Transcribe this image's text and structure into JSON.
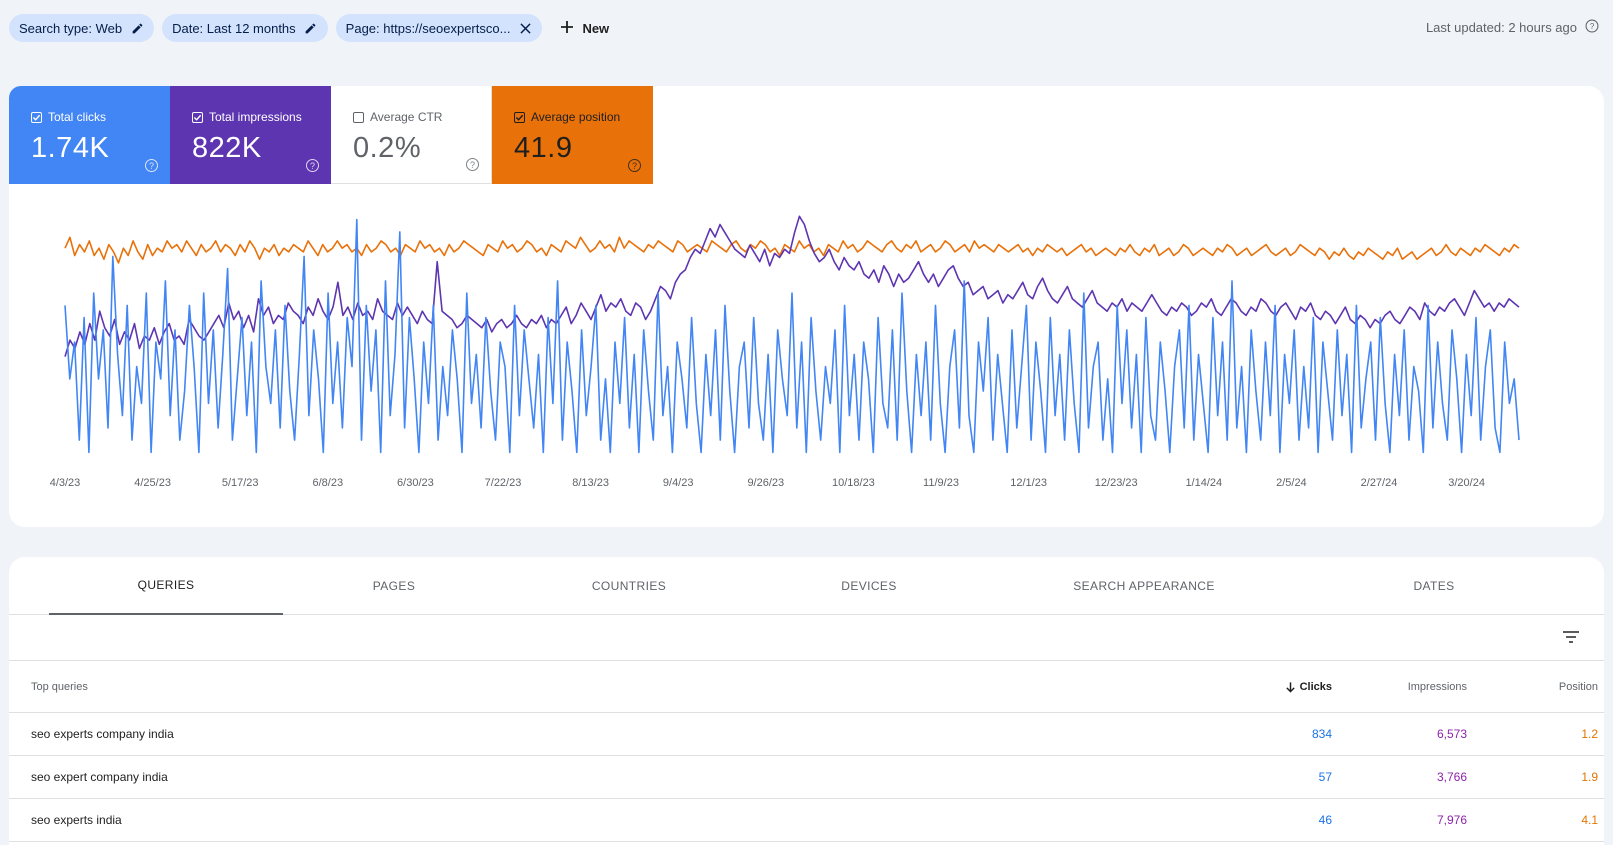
{
  "filters": {
    "search_type": "Search type: Web",
    "date": "Date: Last 12 months",
    "page": "Page: https://seoexpertsco...",
    "new_label": "New"
  },
  "last_updated": "Last updated: 2 hours ago",
  "metrics": {
    "clicks": {
      "label": "Total clicks",
      "value": "1.74K",
      "checked": true,
      "color": "#4285f4"
    },
    "impressions": {
      "label": "Total impressions",
      "value": "822K",
      "checked": true,
      "color": "#5e35b1"
    },
    "ctr": {
      "label": "Average CTR",
      "value": "0.2%",
      "checked": false
    },
    "position": {
      "label": "Average position",
      "value": "41.9",
      "checked": true,
      "color": "#e8710a"
    }
  },
  "chart_data": {
    "type": "line",
    "x_tick_labels": [
      "4/3/23",
      "4/25/23",
      "5/17/23",
      "6/8/23",
      "6/30/23",
      "7/22/23",
      "8/13/23",
      "9/4/23",
      "9/26/23",
      "10/18/23",
      "11/9/23",
      "12/1/23",
      "12/23/23",
      "1/14/24",
      "2/5/24",
      "2/27/24",
      "3/20/24"
    ],
    "grid": false,
    "series": [
      {
        "name": "Total clicks",
        "color": "#4285f4",
        "values": [
          14,
          8,
          11,
          3,
          13,
          2,
          15,
          8,
          12,
          4,
          18,
          10,
          5,
          14,
          3,
          9,
          6,
          15,
          2,
          11,
          8,
          16,
          5,
          12,
          3,
          7,
          14,
          9,
          2,
          15,
          6,
          12,
          4,
          10,
          17,
          3,
          8,
          13,
          5,
          11,
          2,
          16,
          9,
          6,
          12,
          4,
          14,
          7,
          3,
          10,
          18,
          5,
          12,
          8,
          2,
          15,
          6,
          11,
          4,
          13,
          9,
          21,
          3,
          14,
          7,
          12,
          2,
          16,
          5,
          10,
          20,
          4,
          13,
          8,
          2,
          11,
          6,
          14,
          3,
          9,
          5,
          12,
          8,
          2,
          15,
          6,
          10,
          4,
          13,
          7,
          3,
          11,
          9,
          2,
          14,
          5,
          12,
          8,
          4,
          10,
          2,
          13,
          6,
          16,
          3,
          11,
          7,
          2,
          12,
          5,
          9,
          14,
          3,
          8,
          2,
          11,
          6,
          13,
          4,
          10,
          2,
          12,
          7,
          3,
          15,
          5,
          9,
          2,
          11,
          8,
          4,
          13,
          6,
          2,
          10,
          5,
          12,
          3,
          14,
          7,
          2,
          9,
          11,
          4,
          13,
          6,
          3,
          10,
          2,
          12,
          8,
          5,
          15,
          4,
          11,
          2,
          13,
          7,
          3,
          9,
          6,
          12,
          2,
          14,
          5,
          10,
          3,
          11,
          8,
          2,
          13,
          6,
          4,
          12,
          3,
          15,
          7,
          2,
          10,
          5,
          11,
          3,
          14,
          6,
          2,
          9,
          12,
          4,
          16,
          5,
          2,
          11,
          7,
          13,
          3,
          10,
          6,
          2,
          12,
          4,
          9,
          14,
          3,
          11,
          7,
          2,
          13,
          5,
          10,
          3,
          12,
          6,
          2,
          15,
          4,
          9,
          11,
          3,
          8,
          2,
          14,
          6,
          12,
          4,
          10,
          2,
          13,
          5,
          3,
          11,
          7,
          2,
          9,
          12,
          4,
          14,
          3,
          10,
          6,
          2,
          13,
          5,
          11,
          3,
          16,
          4,
          9,
          2,
          12,
          7,
          3,
          11,
          5,
          14,
          2,
          10,
          6,
          12,
          3,
          9,
          4,
          13,
          2,
          11,
          7,
          3,
          12,
          5,
          10,
          2,
          14,
          4,
          8,
          11,
          3,
          13,
          6,
          2,
          10,
          5,
          12,
          3,
          9,
          7,
          2,
          14,
          4,
          11,
          6,
          3,
          12,
          8,
          2,
          10,
          5,
          13,
          3,
          9,
          12,
          4,
          2,
          11,
          6,
          8,
          3
        ]
      },
      {
        "name": "Total impressions",
        "color": "#5e35b1",
        "values": [
          2500,
          2900,
          2700,
          3100,
          2800,
          3300,
          2900,
          3600,
          3200,
          3000,
          3400,
          2800,
          3100,
          2900,
          3300,
          2700,
          3000,
          2900,
          3200,
          2800,
          3100,
          3300,
          2900,
          3000,
          2800,
          3400,
          3200,
          3000,
          2900,
          3100,
          3300,
          3500,
          3200,
          3800,
          3400,
          3600,
          3200,
          3500,
          3100,
          3900,
          3500,
          3700,
          3300,
          3500,
          3400,
          3800,
          3600,
          3500,
          3300,
          3700,
          3500,
          3900,
          3600,
          3400,
          3700,
          4300,
          3500,
          3700,
          3400,
          3800,
          3500,
          3600,
          3400,
          3900,
          3600,
          3500,
          3400,
          3800,
          3500,
          3700,
          3500,
          3300,
          3600,
          3400,
          3300,
          4800,
          3600,
          3500,
          3400,
          3200,
          3300,
          3500,
          3400,
          3300,
          3200,
          3400,
          3100,
          3300,
          3400,
          3200,
          3300,
          3500,
          3300,
          3200,
          3400,
          3300,
          3500,
          3200,
          3400,
          3300,
          3500,
          3700,
          3300,
          3500,
          3800,
          3600,
          3400,
          3700,
          4000,
          3600,
          3800,
          3700,
          3900,
          3600,
          3500,
          3800,
          3700,
          3400,
          3600,
          3900,
          4200,
          4100,
          3900,
          4300,
          4500,
          4600,
          4900,
          5100,
          5000,
          5300,
          5600,
          5400,
          5700,
          5500,
          5300,
          5100,
          5000,
          4900,
          5200,
          5000,
          4800,
          5100,
          4700,
          5000,
          4900,
          5100,
          5000,
          5500,
          5900,
          5700,
          5300,
          5000,
          4800,
          4900,
          5100,
          4800,
          4600,
          4900,
          4700,
          4600,
          4800,
          4500,
          4400,
          4600,
          4300,
          4700,
          4500,
          4200,
          4500,
          4300,
          4400,
          4600,
          4800,
          4500,
          4300,
          4500,
          4200,
          4400,
          4600,
          4700,
          4400,
          4200,
          4300,
          4000,
          4100,
          4200,
          3900,
          4000,
          4100,
          3800,
          4000,
          3900,
          4100,
          4300,
          4000,
          3900,
          4200,
          4400,
          4100,
          3900,
          3800,
          4000,
          4200,
          3900,
          3800,
          3700,
          3900,
          4100,
          3800,
          3700,
          3600,
          3800,
          3700,
          3900,
          3600,
          3800,
          3700,
          3600,
          3800,
          4000,
          3800,
          3600,
          3500,
          3700,
          3600,
          3800,
          3700,
          3500,
          3600,
          3800,
          3700,
          3900,
          3600,
          3500,
          3700,
          3900,
          3800,
          3600,
          3500,
          3700,
          3600,
          3900,
          3800,
          3600,
          3500,
          3700,
          3800,
          3600,
          3400,
          3700,
          3600,
          3800,
          3500,
          3400,
          3600,
          3500,
          3300,
          3500,
          3700,
          3400,
          3300,
          3500,
          3400,
          3200,
          3400,
          3300,
          3500,
          3600,
          3400,
          3300,
          3500,
          3700,
          3600,
          3400,
          3800,
          3600,
          3500,
          3700,
          3600,
          3800,
          3900,
          3700,
          3500,
          3800,
          4100,
          3900,
          3700,
          3800,
          3600,
          3800,
          3700,
          3900,
          3800,
          3700
        ]
      },
      {
        "name": "Average position",
        "color": "#e8710a",
        "values": [
          42,
          45,
          40,
          43,
          41,
          44,
          40,
          42,
          39,
          43,
          41,
          38,
          42,
          40,
          44,
          41,
          39,
          43,
          40,
          42,
          41,
          44,
          42,
          43,
          41,
          44,
          42,
          40,
          43,
          41,
          42,
          44,
          41,
          43,
          42,
          40,
          43,
          41,
          44,
          42,
          39,
          42,
          41,
          43,
          40,
          42,
          41,
          43,
          42,
          41,
          44,
          42,
          40,
          43,
          41,
          42,
          44,
          42,
          43,
          41,
          42,
          40,
          43,
          41,
          42,
          44,
          43,
          41,
          42,
          40,
          43,
          42,
          41,
          44,
          42,
          43,
          41,
          42,
          40,
          43,
          41,
          42,
          44,
          43,
          42,
          41,
          40,
          43,
          42,
          41,
          44,
          42,
          43,
          41,
          42,
          44,
          43,
          41,
          42,
          40,
          43,
          42,
          41,
          44,
          43,
          42,
          45,
          43,
          41,
          42,
          44,
          42,
          43,
          41,
          45,
          42,
          44,
          43,
          42,
          41,
          43,
          42,
          44,
          43,
          42,
          41,
          44,
          43,
          41,
          42,
          43,
          42,
          41,
          44,
          43,
          42,
          41,
          43,
          44,
          42,
          41,
          43,
          42,
          44,
          43,
          41,
          42,
          40,
          43,
          42,
          41,
          44,
          42,
          43,
          41,
          42,
          40,
          43,
          42,
          41,
          44,
          42,
          43,
          41,
          42,
          44,
          43,
          42,
          41,
          43,
          44,
          42,
          41,
          43,
          42,
          44,
          41,
          42,
          43,
          41,
          42,
          44,
          43,
          41,
          42,
          43,
          41,
          44,
          42,
          43,
          42,
          41,
          43,
          42,
          41,
          42,
          43,
          41,
          42,
          40,
          42,
          41,
          43,
          42,
          41,
          42,
          40,
          41,
          42,
          43,
          41,
          42,
          40,
          41,
          42,
          41,
          40,
          42,
          41,
          43,
          41,
          40,
          42,
          41,
          43,
          40,
          41,
          42,
          40,
          41,
          43,
          42,
          40,
          41,
          42,
          41,
          40,
          42,
          41,
          43,
          42,
          40,
          41,
          42,
          40,
          41,
          42,
          43,
          41,
          40,
          41,
          42,
          40,
          41,
          43,
          42,
          41,
          40,
          42,
          41,
          39,
          41,
          40,
          42,
          40,
          39,
          41,
          40,
          42,
          41,
          40,
          39,
          41,
          40,
          42,
          39,
          40,
          41,
          39,
          40,
          41,
          42,
          40,
          41,
          43,
          41,
          40,
          42,
          41,
          40,
          42,
          41,
          43,
          42,
          41,
          40,
          42,
          41,
          43,
          42
        ]
      }
    ]
  },
  "tabs": [
    "QUERIES",
    "PAGES",
    "COUNTRIES",
    "DEVICES",
    "SEARCH APPEARANCE",
    "DATES"
  ],
  "table": {
    "headers": {
      "query": "Top queries",
      "clicks": "Clicks",
      "impressions": "Impressions",
      "position": "Position"
    },
    "rows": [
      {
        "query": "seo experts company india",
        "clicks": "834",
        "impressions": "6,573",
        "position": "1.2"
      },
      {
        "query": "seo expert company india",
        "clicks": "57",
        "impressions": "3,766",
        "position": "1.9"
      },
      {
        "query": "seo experts india",
        "clicks": "46",
        "impressions": "7,976",
        "position": "4.1"
      }
    ]
  }
}
